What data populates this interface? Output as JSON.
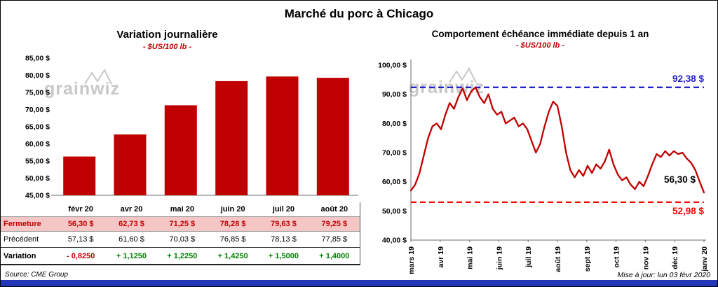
{
  "page": {
    "title": "Marché du porc à Chicago"
  },
  "watermark": {
    "text": "grainwiz"
  },
  "colors": {
    "brand_red": "#C00000",
    "positive": "#008000",
    "negative": "#C00000",
    "ref_blue": "#2222CC",
    "ref_red": "#FF0000",
    "table_highlight": "#F5C6C6",
    "watermark_gray": "#C8C8C8",
    "bottom_bar": "#2336B5"
  },
  "chart_data": [
    {
      "type": "bar",
      "title": "Variation journalière",
      "subtitle": "- $US/100 lb -",
      "categories": [
        "févr 20",
        "avr 20",
        "mai 20",
        "juin 20",
        "juil 20",
        "août 20"
      ],
      "values": [
        56.3,
        62.73,
        71.25,
        78.28,
        79.63,
        79.25
      ],
      "ylim": [
        45,
        85
      ],
      "ytick_step": 5,
      "ytick_labels": [
        "45,00 $",
        "50,00 $",
        "55,00 $",
        "60,00 $",
        "65,00 $",
        "70,00 $",
        "75,00 $",
        "80,00 $",
        "85,00 $"
      ],
      "bar_color": "#C00000",
      "grid": false,
      "legend": "none"
    },
    {
      "type": "line",
      "title": "Comportement échéance immédiate depuis 1 an",
      "subtitle": "- $US/100 lb -",
      "x_labels": [
        "mars 19",
        "avr 19",
        "mai 19",
        "juin 19",
        "juil 19",
        "août 19",
        "sept 19",
        "oct 19",
        "nov 19",
        "déc 19",
        "janv 20"
      ],
      "ylim": [
        40,
        100
      ],
      "ytick_step": 10,
      "ytick_labels": [
        "40,00 $",
        "50,00 $",
        "60,00 $",
        "70,00 $",
        "80,00 $",
        "90,00 $",
        "100,00 $"
      ],
      "line_color": "#C00000",
      "grid": false,
      "legend": "none",
      "values": [
        57,
        59,
        63,
        69,
        75,
        79,
        80,
        78,
        83,
        87,
        85,
        89,
        92,
        88,
        91,
        92.4,
        89,
        87,
        90,
        85,
        83,
        84,
        80,
        81,
        82,
        79,
        80,
        78,
        74,
        70,
        73,
        79,
        84,
        87.5,
        86,
        79,
        70,
        64,
        61.5,
        64,
        62,
        65.5,
        63,
        66,
        64.5,
        67,
        71,
        66,
        62.5,
        60.5,
        61.5,
        59,
        57.5,
        60,
        58.5,
        62,
        66,
        69.5,
        68.5,
        70.5,
        69,
        70.5,
        69.5,
        70,
        68,
        66.5,
        64,
        60,
        56.3
      ],
      "reference_lines": [
        {
          "value": 92.38,
          "label": "92,38 $",
          "color": "#2222CC",
          "style": "dashed"
        },
        {
          "value": 52.98,
          "label": "52,98 $",
          "color": "#FF0000",
          "style": "dashed"
        }
      ],
      "last_value_label": {
        "value": 56.3,
        "label": "56,30 $",
        "color": "#000000"
      }
    }
  ],
  "table": {
    "rows": [
      {
        "label": "Fermeture",
        "values": [
          "56,30 $",
          "62,73 $",
          "71,25 $",
          "78,28 $",
          "79,63 $",
          "79,25 $"
        ]
      },
      {
        "label": "Précédent",
        "values": [
          "57,13 $",
          "61,60 $",
          "70,03 $",
          "76,85 $",
          "78,13 $",
          "77,85 $"
        ]
      },
      {
        "label": "Variation",
        "values": [
          "- 0,8250",
          "+ 1,1250",
          "+ 1,2250",
          "+ 1,4250",
          "+ 1,5000",
          "+ 1,4000"
        ]
      }
    ]
  },
  "footer": {
    "source": "Source: CME Group",
    "updated": "Mise à jour: lun 03 févr 2020"
  }
}
